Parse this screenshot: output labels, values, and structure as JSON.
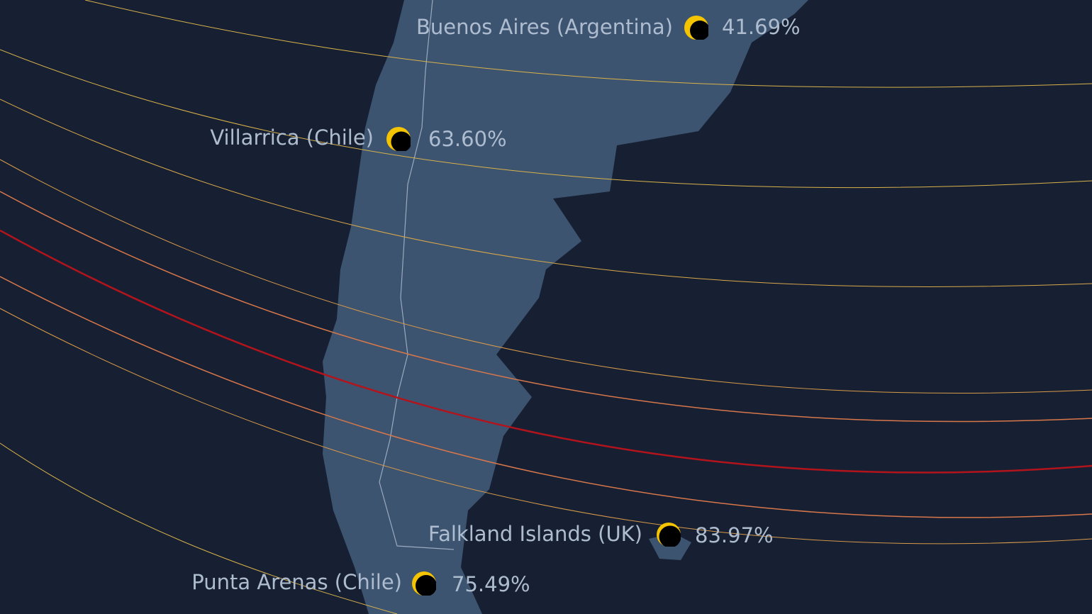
{
  "colors": {
    "background": "#172033",
    "land": "#3d5470",
    "border": "#9aaabf",
    "sun": "#f5c400",
    "moon": "#000000",
    "line_light": "#d9b24a",
    "line_mid": "#d8774a",
    "line_center": "#b3141c"
  },
  "locations": [
    {
      "name": "Buenos Aires (Argentina)",
      "percent": "41.69%",
      "obscuration": 41.69
    },
    {
      "name": "Villarrica (Chile)",
      "percent": "63.60%",
      "obscuration": 63.6
    },
    {
      "name": "Falkland Islands (UK)",
      "percent": "83.97%",
      "obscuration": 83.97
    },
    {
      "name": "Punta Arenas (Chile)",
      "percent": "75.49%",
      "obscuration": 75.49
    }
  ]
}
